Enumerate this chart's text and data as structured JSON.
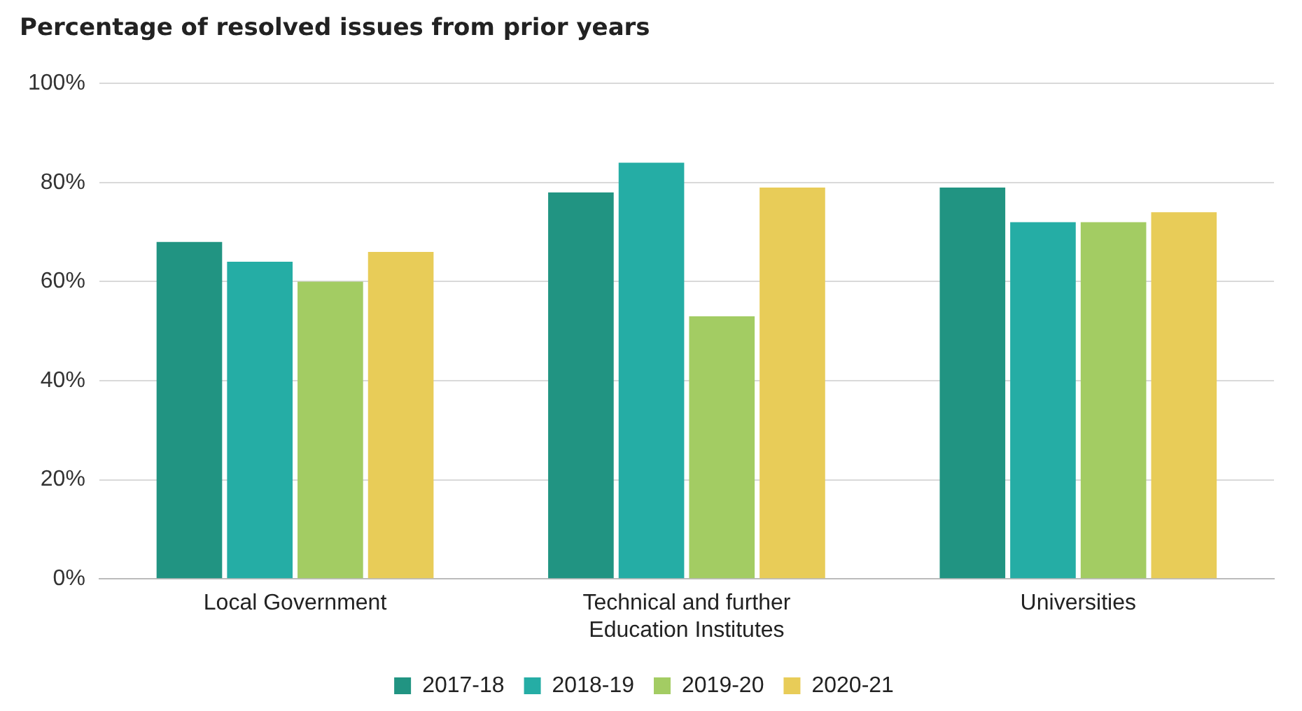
{
  "chart_data": {
    "type": "bar",
    "title": "Percentage of resolved issues from prior years",
    "categories": [
      "Local Government",
      "Technical and further Education Institutes",
      "Universities"
    ],
    "series": [
      {
        "name": "2017-18",
        "color": "#219482",
        "values": [
          68,
          78,
          79
        ]
      },
      {
        "name": "2018-19",
        "color": "#25ada5",
        "values": [
          64,
          84,
          72
        ]
      },
      {
        "name": "2019-20",
        "color": "#a3cc63",
        "values": [
          60,
          53,
          72
        ]
      },
      {
        "name": "2020-21",
        "color": "#e8cc58",
        "values": [
          66,
          79,
          74
        ]
      }
    ],
    "ylim": [
      0,
      100
    ],
    "yticks": [
      {
        "value": 0,
        "label": "0%"
      },
      {
        "value": 20,
        "label": "20%"
      },
      {
        "value": 40,
        "label": "40%"
      },
      {
        "value": 60,
        "label": "60%"
      },
      {
        "value": 80,
        "label": "80%"
      },
      {
        "value": 100,
        "label": "100%"
      }
    ],
    "grid": "y",
    "legend": "bottom"
  }
}
